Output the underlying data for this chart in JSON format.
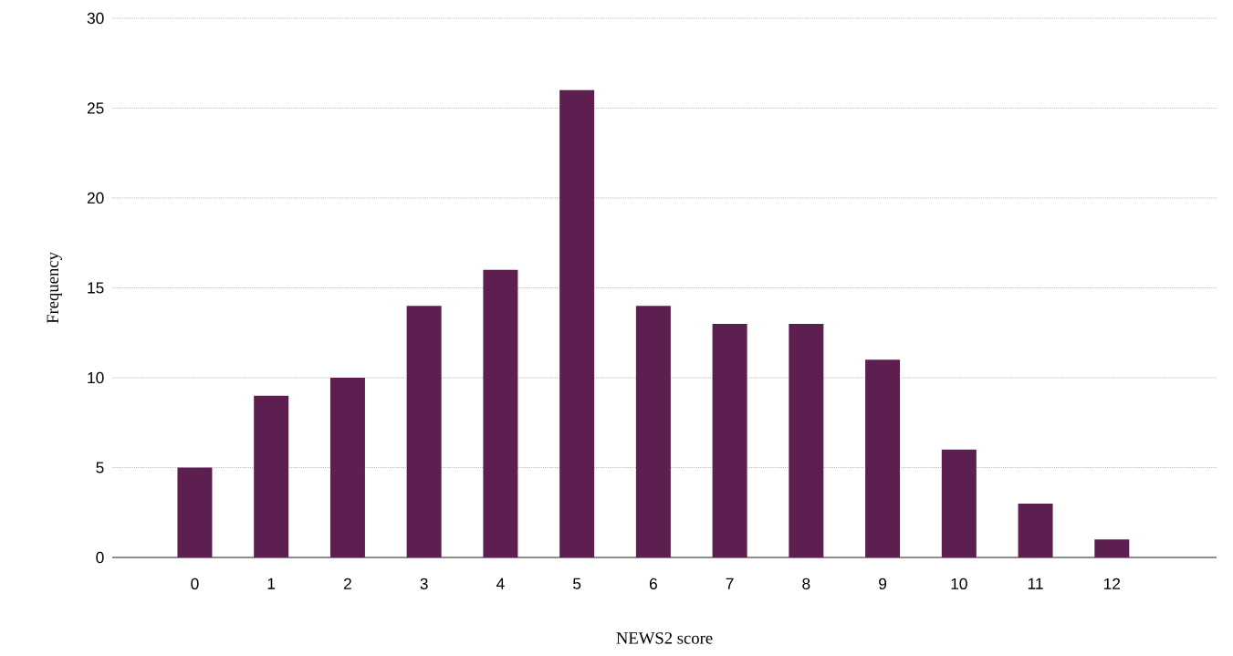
{
  "chart_data": {
    "type": "bar",
    "xlabel": "NEWS2 score",
    "ylabel": "Frequency",
    "categories": [
      "0",
      "1",
      "2",
      "3",
      "4",
      "5",
      "6",
      "7",
      "8",
      "9",
      "10",
      "11",
      "12"
    ],
    "values": [
      5,
      9,
      10,
      14,
      16,
      26,
      14,
      13,
      13,
      11,
      6,
      3,
      1
    ],
    "color": "#5c1f4f",
    "ylim": [
      0,
      30
    ],
    "yticks": [
      0,
      5,
      10,
      15,
      20,
      25,
      30
    ],
    "grid": "y"
  }
}
